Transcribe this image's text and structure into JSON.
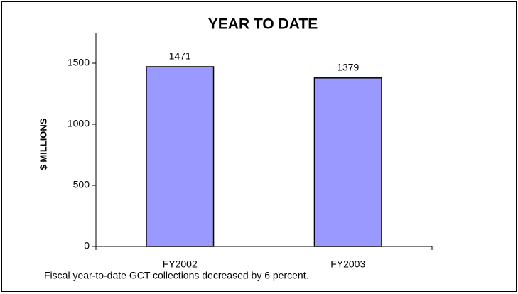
{
  "chart_data": {
    "type": "bar",
    "title": "YEAR TO DATE",
    "y_label": "$ MILLIONS",
    "categories": [
      "FY2002",
      "FY2003"
    ],
    "values": [
      1471,
      1379
    ],
    "color": "#9999ff",
    "ylim": [
      0,
      1750
    ],
    "yticks": [
      0,
      500,
      1000,
      1500
    ],
    "caption": "Fiscal year-to-date GCT collections decreased by 6 percent."
  }
}
